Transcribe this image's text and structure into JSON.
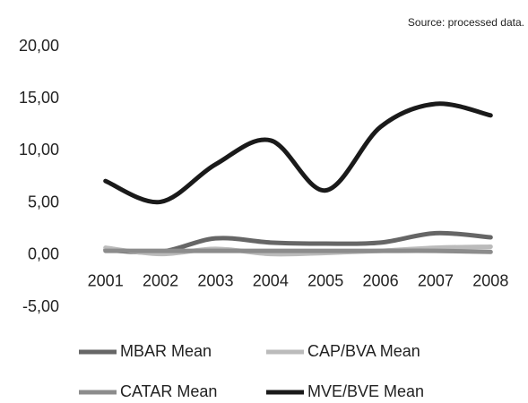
{
  "chart_data": {
    "type": "line",
    "subtitle": "Source: processed data.",
    "categories": [
      "2001",
      "2002",
      "2003",
      "2004",
      "2005",
      "2006",
      "2007",
      "2008"
    ],
    "series": [
      {
        "name": "MBAR Mean",
        "color": "#666666",
        "values": [
          0.5,
          0.3,
          1.6,
          1.2,
          1.1,
          1.2,
          2.1,
          1.7
        ]
      },
      {
        "name": "CAP/BVA Mean",
        "color": "#bbbbbb",
        "values": [
          0.7,
          0.1,
          0.6,
          0.1,
          0.2,
          0.4,
          0.7,
          0.8
        ]
      },
      {
        "name": "CATAR Mean",
        "color": "#8c8c8c",
        "values": [
          0.4,
          0.4,
          0.4,
          0.4,
          0.4,
          0.4,
          0.4,
          0.3
        ]
      },
      {
        "name": "MVE/BVE Mean",
        "color": "#1a1a1a",
        "values": [
          7.1,
          5.1,
          8.7,
          11.0,
          6.2,
          12.3,
          14.5,
          13.4
        ]
      }
    ],
    "ylim": [
      -5,
      20
    ],
    "yticks": [
      {
        "value": 20,
        "label": "20,00"
      },
      {
        "value": 15,
        "label": "15,00"
      },
      {
        "value": 10,
        "label": "10,00"
      },
      {
        "value": 5,
        "label": "5,00"
      },
      {
        "value": 0,
        "label": "0,00"
      },
      {
        "value": -5,
        "label": "-5,00"
      }
    ],
    "grid": false,
    "legend": "bottom"
  }
}
